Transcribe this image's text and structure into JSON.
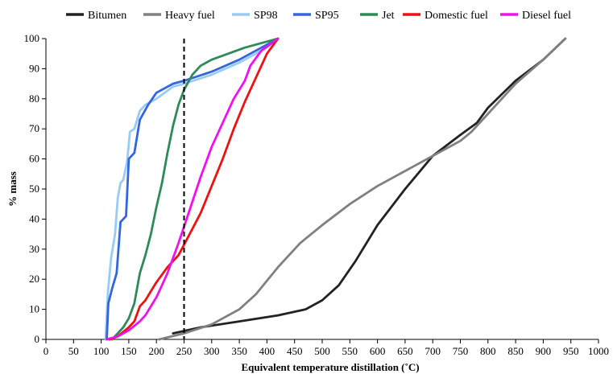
{
  "chart_data": {
    "type": "line",
    "title": "",
    "xlabel": "Equivalent temperature distillation (˚C)",
    "ylabel": "% mass",
    "xlim": [
      0,
      1000
    ],
    "ylim": [
      0,
      100
    ],
    "x_ticks": [
      "0",
      "50",
      "100",
      "150",
      "200",
      "250",
      "300",
      "350",
      "400",
      "450",
      "500",
      "550",
      "600",
      "650",
      "700",
      "750",
      "800",
      "850",
      "900",
      "950",
      "1000"
    ],
    "y_ticks": [
      "0",
      "10",
      "20",
      "30",
      "40",
      "50",
      "60",
      "70",
      "80",
      "90",
      "100"
    ],
    "grid": false,
    "legend_position": "top",
    "reference_line": {
      "x": 250,
      "style": "dashed"
    },
    "series": [
      {
        "name": "Bitumen",
        "color": "#222222",
        "points": [
          [
            230,
            2
          ],
          [
            280,
            4
          ],
          [
            350,
            6
          ],
          [
            420,
            8
          ],
          [
            470,
            10
          ],
          [
            500,
            13
          ],
          [
            530,
            18
          ],
          [
            560,
            26
          ],
          [
            600,
            38
          ],
          [
            650,
            50
          ],
          [
            700,
            61
          ],
          [
            750,
            68
          ],
          [
            780,
            72
          ],
          [
            800,
            77
          ],
          [
            850,
            86
          ],
          [
            900,
            93
          ],
          [
            940,
            100
          ]
        ]
      },
      {
        "name": "Heavy fuel",
        "color": "#808080",
        "points": [
          [
            205,
            0
          ],
          [
            250,
            2
          ],
          [
            300,
            5
          ],
          [
            350,
            10
          ],
          [
            380,
            15
          ],
          [
            420,
            24
          ],
          [
            460,
            32
          ],
          [
            500,
            38
          ],
          [
            550,
            45
          ],
          [
            600,
            51
          ],
          [
            650,
            56
          ],
          [
            700,
            61
          ],
          [
            750,
            66
          ],
          [
            770,
            69
          ],
          [
            800,
            75
          ],
          [
            850,
            85
          ],
          [
            900,
            93
          ],
          [
            940,
            100
          ]
        ]
      },
      {
        "name": "SP98",
        "color": "#99ccf5",
        "points": [
          [
            108,
            0
          ],
          [
            112,
            15
          ],
          [
            118,
            27
          ],
          [
            125,
            35
          ],
          [
            130,
            47
          ],
          [
            135,
            52
          ],
          [
            140,
            53
          ],
          [
            147,
            59
          ],
          [
            152,
            69
          ],
          [
            160,
            70
          ],
          [
            165,
            73
          ],
          [
            170,
            76
          ],
          [
            180,
            78
          ],
          [
            200,
            80
          ],
          [
            230,
            84
          ],
          [
            250,
            85
          ],
          [
            300,
            88
          ],
          [
            350,
            92
          ],
          [
            400,
            97
          ],
          [
            420,
            100
          ]
        ]
      },
      {
        "name": "SP95",
        "color": "#3366dd",
        "points": [
          [
            110,
            0
          ],
          [
            113,
            12
          ],
          [
            120,
            17
          ],
          [
            128,
            22
          ],
          [
            135,
            39
          ],
          [
            145,
            41
          ],
          [
            150,
            60
          ],
          [
            160,
            62
          ],
          [
            170,
            73
          ],
          [
            185,
            78
          ],
          [
            200,
            82
          ],
          [
            230,
            85
          ],
          [
            250,
            86
          ],
          [
            300,
            89
          ],
          [
            350,
            93
          ],
          [
            400,
            98
          ],
          [
            420,
            100
          ]
        ]
      },
      {
        "name": "Jet",
        "color": "#2e8b57",
        "points": [
          [
            120,
            0
          ],
          [
            130,
            2
          ],
          [
            140,
            4
          ],
          [
            150,
            7
          ],
          [
            160,
            12
          ],
          [
            170,
            22
          ],
          [
            180,
            28
          ],
          [
            190,
            35
          ],
          [
            200,
            44
          ],
          [
            210,
            52
          ],
          [
            220,
            62
          ],
          [
            230,
            71
          ],
          [
            240,
            78
          ],
          [
            250,
            83
          ],
          [
            265,
            88
          ],
          [
            280,
            91
          ],
          [
            300,
            93
          ],
          [
            330,
            95
          ],
          [
            360,
            97
          ],
          [
            400,
            99
          ],
          [
            420,
            100
          ]
        ]
      },
      {
        "name": "Domestic fuel",
        "color": "#ee1111",
        "points": [
          [
            115,
            0
          ],
          [
            130,
            1
          ],
          [
            150,
            4
          ],
          [
            160,
            6
          ],
          [
            170,
            11
          ],
          [
            180,
            13
          ],
          [
            190,
            16
          ],
          [
            200,
            19
          ],
          [
            220,
            24
          ],
          [
            240,
            28
          ],
          [
            260,
            35
          ],
          [
            280,
            42
          ],
          [
            300,
            51
          ],
          [
            320,
            60
          ],
          [
            340,
            70
          ],
          [
            360,
            79
          ],
          [
            380,
            87
          ],
          [
            400,
            95
          ],
          [
            420,
            100
          ]
        ]
      },
      {
        "name": "Diesel fuel",
        "color": "#ee11ee",
        "points": [
          [
            110,
            0
          ],
          [
            130,
            1
          ],
          [
            150,
            3
          ],
          [
            170,
            6
          ],
          [
            180,
            8
          ],
          [
            190,
            11
          ],
          [
            200,
            14
          ],
          [
            210,
            18
          ],
          [
            220,
            22
          ],
          [
            240,
            32
          ],
          [
            260,
            43
          ],
          [
            280,
            54
          ],
          [
            300,
            64
          ],
          [
            320,
            72
          ],
          [
            340,
            80
          ],
          [
            360,
            86
          ],
          [
            370,
            91
          ],
          [
            390,
            96
          ],
          [
            420,
            100
          ]
        ]
      }
    ]
  }
}
